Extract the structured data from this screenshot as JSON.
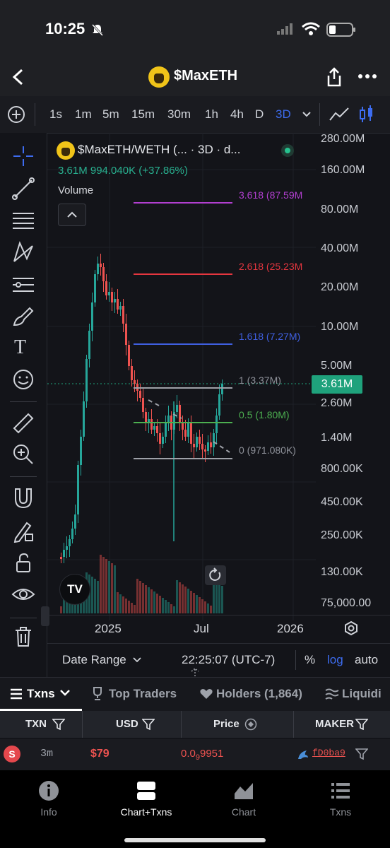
{
  "status_bar": {
    "time": "10:25"
  },
  "header": {
    "title": "$MaxETH"
  },
  "timeframes": [
    "1s",
    "1m",
    "5m",
    "15m",
    "30m",
    "1h",
    "4h",
    "D",
    "3D"
  ],
  "active_timeframe": "3D",
  "chart": {
    "symbol_line": "$MaxETH/WETH (... · 3D · d...",
    "ohlc_line": "3.61M  994.040K (+37.86%)",
    "volume_label": "Volume",
    "price_tag": "3.61M",
    "y_ticks": [
      "280.00M",
      "160.00M",
      "80.00M",
      "40.00M",
      "20.00M",
      "10.00M",
      "5.00M",
      "2.60M",
      "1.40M",
      "800.00K",
      "450.00K",
      "250.00K",
      "130.00K",
      "75,000.00"
    ],
    "x_ticks": [
      "2025",
      "Jul",
      "2026"
    ],
    "fib_levels": [
      {
        "label": "3.618 (87.59M",
        "color": "#b23fd0"
      },
      {
        "label": "2.618 (25.23M",
        "color": "#e5363f"
      },
      {
        "label": "1.618 (7.27M)",
        "color": "#3f5fe0"
      },
      {
        "label": "1 (3.37M)",
        "color": "#8e9199"
      },
      {
        "label": "0.5 (1.80M)",
        "color": "#4caf50"
      },
      {
        "label": "0 (971.080K)",
        "color": "#8e9199"
      }
    ],
    "date_range": "Date Range",
    "clock": "22:25:07 (UTC-7)",
    "pct": "%",
    "log": "log",
    "auto": "auto"
  },
  "tabs": [
    "Txns",
    "Top Traders",
    "Holders (1,864)",
    "Liquidi"
  ],
  "table": {
    "headers": [
      "TXN",
      "USD",
      "Price",
      "MAKER"
    ],
    "rows": [
      {
        "side": "S",
        "age": "3m",
        "usd": "$79",
        "price_main": "0.0",
        "price_sub": "9",
        "price_tail": "9951",
        "maker": "fD0ba9"
      }
    ]
  },
  "bottom_nav": [
    "Info",
    "Chart+Txns",
    "Chart",
    "Txns"
  ],
  "colors": {
    "up": "#26a69a",
    "down": "#ef5350",
    "accent": "#3d6cf0"
  }
}
